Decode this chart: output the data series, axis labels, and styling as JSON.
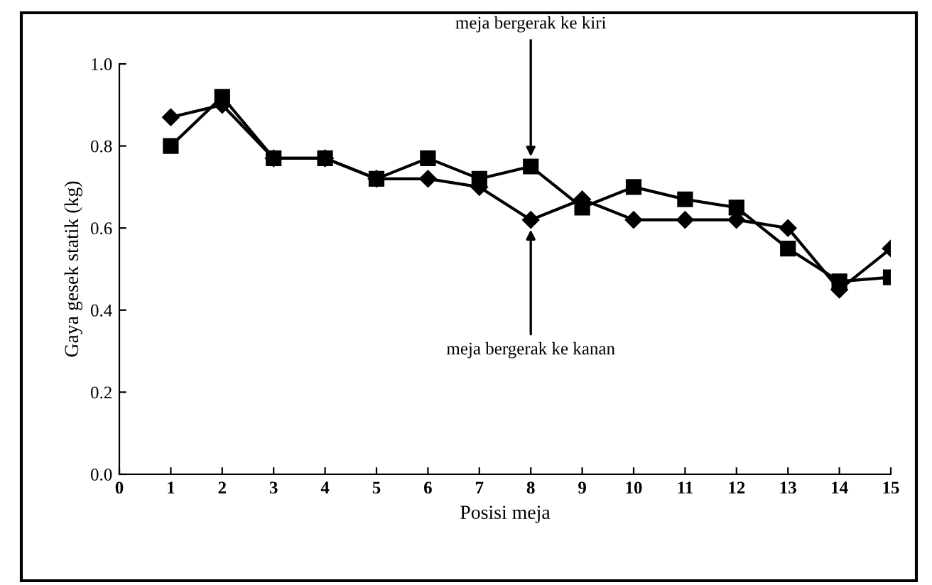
{
  "chart_data": {
    "type": "line",
    "xlabel": "Posisi meja",
    "ylabel": "Gaya gesek statik (kg)",
    "x": [
      1,
      2,
      3,
      4,
      5,
      6,
      7,
      8,
      9,
      10,
      11,
      12,
      13,
      14,
      15
    ],
    "series": [
      {
        "color": "#000000",
        "marker": "square",
        "values": [
          0.8,
          0.92,
          0.77,
          0.77,
          0.72,
          0.77,
          0.72,
          0.75,
          0.65,
          0.7,
          0.67,
          0.65,
          0.55,
          0.47,
          0.48
        ]
      },
      {
        "color": "#000000",
        "marker": "diamond",
        "values": [
          0.87,
          0.9,
          0.77,
          0.77,
          0.72,
          0.72,
          0.7,
          0.62,
          0.67,
          0.62,
          0.62,
          0.62,
          0.6,
          0.45,
          0.55
        ]
      }
    ],
    "annotations": [
      {
        "text": "meja bergerak ke kiri",
        "x": 8,
        "y": 0.75
      },
      {
        "text": "meja bergerak ke kanan",
        "x": 8,
        "y": 0.62
      }
    ],
    "xlim": [
      0,
      15
    ],
    "xticks": [
      0,
      1,
      2,
      3,
      4,
      5,
      6,
      7,
      8,
      9,
      10,
      11,
      12,
      13,
      14,
      15
    ],
    "ylim": [
      0,
      1.0
    ],
    "yticks": [
      {
        "value": 0,
        "label": "0.0"
      },
      {
        "value": 0.2,
        "label": "0.2"
      },
      {
        "value": 0.4,
        "label": "0.4"
      },
      {
        "value": 0.6,
        "label": "0.6"
      },
      {
        "value": 0.8,
        "label": "0.8"
      },
      {
        "value": 1.0,
        "label": "1.0"
      }
    ],
    "line_style": "solid"
  }
}
